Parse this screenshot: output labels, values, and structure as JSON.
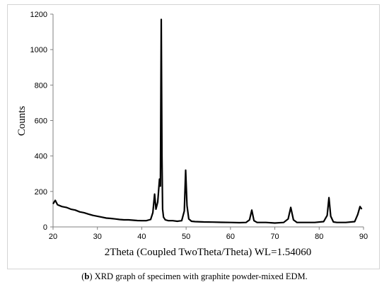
{
  "chart_data": {
    "type": "line",
    "xlabel": "2Theta (Coupled TwoTheta/Theta) WL=1.54060",
    "ylabel": "Counts",
    "xlim": [
      20,
      90
    ],
    "ylim": [
      0,
      1200
    ],
    "xticks": [
      "20",
      "30",
      "40",
      "50",
      "60",
      "70",
      "80",
      "90"
    ],
    "yticks": [
      "0",
      "200",
      "400",
      "600",
      "800",
      "1000",
      "1200"
    ],
    "grid": false,
    "series": [
      {
        "color": "#000000",
        "x": [
          20,
          20.5,
          21,
          22,
          23,
          24,
          25,
          26,
          27,
          28,
          29,
          30,
          31,
          32,
          33,
          34,
          35,
          36,
          37,
          38,
          39,
          40,
          41,
          42,
          42.5,
          42.9,
          43.2,
          43.6,
          44.0,
          44.2,
          44.4,
          44.55,
          44.7,
          44.9,
          45.3,
          46,
          47,
          48,
          49,
          49.6,
          49.9,
          50.2,
          50.6,
          51.2,
          52,
          54,
          56,
          58,
          60,
          62,
          63.5,
          64.3,
          64.8,
          65.3,
          66,
          68,
          70,
          72,
          73.0,
          73.6,
          74.2,
          75,
          77,
          79,
          81,
          81.8,
          82.2,
          82.6,
          83.2,
          84,
          86,
          88,
          88.7,
          89.2,
          89.6
        ],
        "y": [
          130,
          150,
          125,
          115,
          110,
          100,
          95,
          85,
          80,
          72,
          65,
          60,
          55,
          50,
          48,
          45,
          42,
          40,
          40,
          38,
          36,
          35,
          35,
          42,
          80,
          185,
          100,
          140,
          270,
          230,
          1170,
          400,
          100,
          55,
          40,
          35,
          35,
          32,
          35,
          90,
          320,
          120,
          45,
          32,
          30,
          28,
          27,
          26,
          25,
          24,
          25,
          40,
          95,
          35,
          25,
          25,
          22,
          25,
          45,
          110,
          40,
          25,
          25,
          25,
          30,
          65,
          165,
          60,
          28,
          25,
          25,
          30,
          70,
          115,
          100
        ]
      }
    ]
  },
  "caption": {
    "label": "b",
    "text": "XRD graph of specimen with graphite powder-mixed EDM."
  }
}
